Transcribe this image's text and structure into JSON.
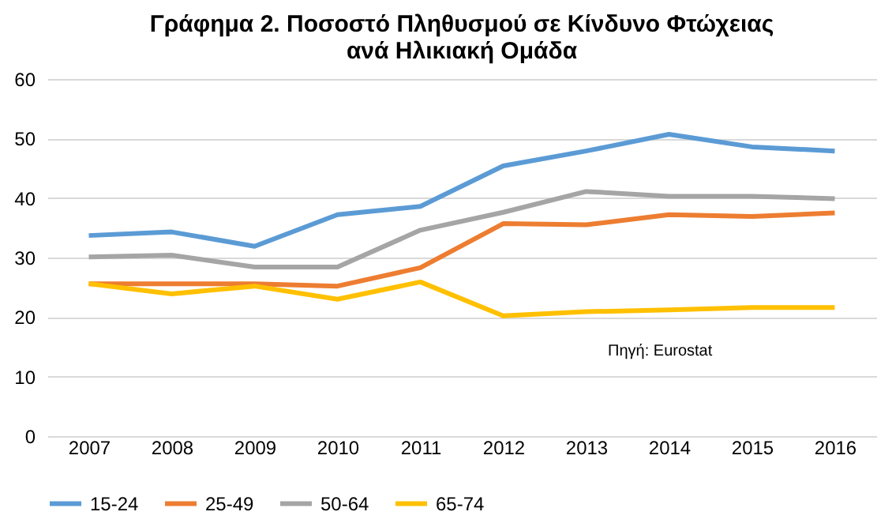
{
  "chart_data": {
    "type": "line",
    "title": [
      "Γράφημα 2. Ποσοστό Πληθυσμού σε Κίνδυνο Φτώχειας",
      "ανά Ηλικιακή Ομάδα"
    ],
    "categories": [
      "2007",
      "2008",
      "2009",
      "2010",
      "2011",
      "2012",
      "2013",
      "2014",
      "2015",
      "2016"
    ],
    "series": [
      {
        "name": "15-24",
        "color": "#5b9bd5",
        "values": [
          33.7,
          34.3,
          31.9,
          37.2,
          38.6,
          45.4,
          47.9,
          50.7,
          48.6,
          47.9
        ]
      },
      {
        "name": "25-49",
        "color": "#ed7d31",
        "values": [
          25.6,
          25.6,
          25.6,
          25.2,
          28.3,
          35.7,
          35.5,
          37.2,
          36.9,
          37.5
        ]
      },
      {
        "name": "50-64",
        "color": "#a5a5a5",
        "values": [
          30.1,
          30.4,
          28.4,
          28.4,
          34.6,
          37.6,
          41.1,
          40.3,
          40.3,
          39.9
        ]
      },
      {
        "name": "65-74",
        "color": "#ffc000",
        "values": [
          25.6,
          23.9,
          25.2,
          23.0,
          25.9,
          20.2,
          20.9,
          21.2,
          21.6,
          21.6
        ]
      }
    ],
    "ylim": [
      0,
      60
    ],
    "yticks": [
      0,
      10,
      20,
      30,
      40,
      50,
      60
    ],
    "grid": "y",
    "legend": "bottom",
    "marker": "none",
    "line_style": "solid",
    "annotations": [
      "Πηγή: Eurostat"
    ]
  }
}
